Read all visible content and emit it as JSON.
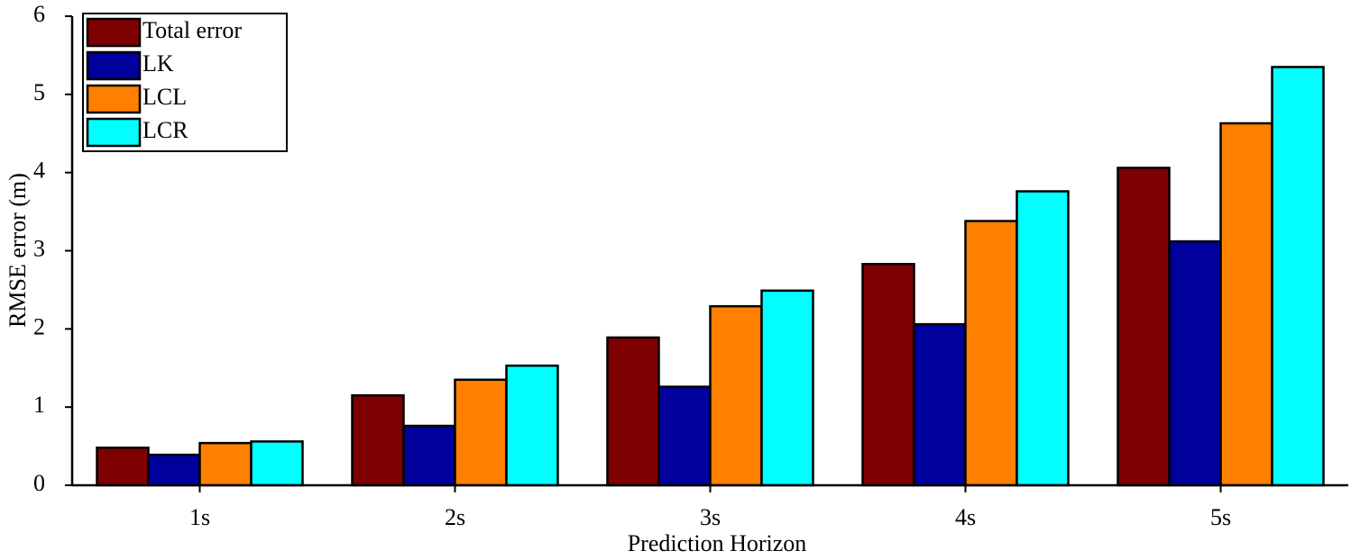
{
  "chart_data": {
    "type": "bar",
    "x_label": "Prediction Horizon",
    "y_label": "RMSE  error   (m)",
    "categories": [
      "1s",
      "2s",
      "3s",
      "4s",
      "5s"
    ],
    "series": [
      {
        "name": "Total error",
        "color": "#7f0000",
        "values": [
          0.48,
          1.15,
          1.89,
          2.83,
          4.06
        ]
      },
      {
        "name": "LK",
        "color": "#00009c",
        "values": [
          0.39,
          0.76,
          1.26,
          2.06,
          3.12
        ]
      },
      {
        "name": "LCL",
        "color": "#ff8000",
        "values": [
          0.54,
          1.35,
          2.29,
          3.38,
          4.63
        ]
      },
      {
        "name": "LCR",
        "color": "#00ffff",
        "values": [
          0.56,
          1.53,
          2.49,
          3.76,
          5.35
        ]
      }
    ],
    "ylim": [
      0,
      6
    ],
    "yticks": [
      0,
      1,
      2,
      3,
      4,
      5,
      6
    ],
    "legend": "top-left"
  }
}
